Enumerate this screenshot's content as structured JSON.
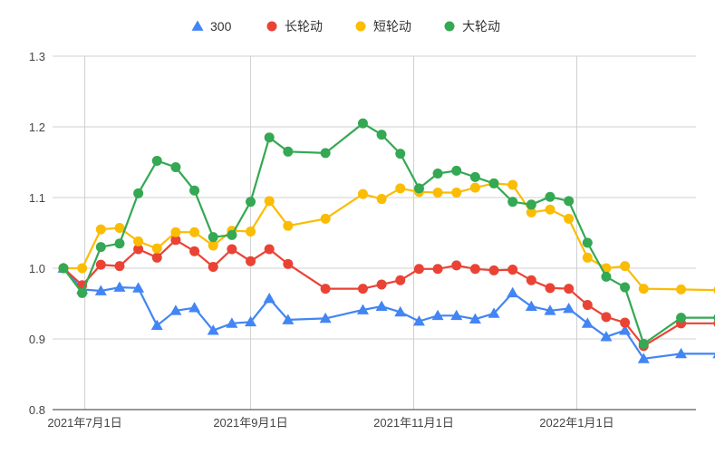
{
  "chart_data": {
    "type": "line",
    "x_start": "2021-06-28",
    "x_end": "2022-03-02",
    "x_ticks": [
      {
        "date": "2021-07-01",
        "label": "2021年7月1日"
      },
      {
        "date": "2021-09-01",
        "label": "2021年9月1日"
      },
      {
        "date": "2021-11-01",
        "label": "2021年11月1日"
      },
      {
        "date": "2022-01-01",
        "label": "2022年1月1日"
      }
    ],
    "ylim": [
      0.8,
      1.3
    ],
    "y_ticks": [
      {
        "value": 0.8,
        "label": "0.8"
      },
      {
        "value": 0.9,
        "label": "0.9"
      },
      {
        "value": 1.0,
        "label": "1.0"
      },
      {
        "value": 1.1,
        "label": "1.1"
      },
      {
        "value": 1.2,
        "label": "1.2"
      },
      {
        "value": 1.3,
        "label": "1.3"
      }
    ],
    "grid": true,
    "legend_position": "top",
    "x": [
      "2021-06-23",
      "2021-06-30",
      "2021-07-07",
      "2021-07-14",
      "2021-07-21",
      "2021-07-28",
      "2021-08-04",
      "2021-08-11",
      "2021-08-18",
      "2021-08-25",
      "2021-09-01",
      "2021-09-08",
      "2021-09-15",
      "2021-09-29",
      "2021-10-13",
      "2021-10-20",
      "2021-10-27",
      "2021-11-03",
      "2021-11-10",
      "2021-11-17",
      "2021-11-24",
      "2021-12-01",
      "2021-12-08",
      "2021-12-15",
      "2021-12-22",
      "2021-12-29",
      "2022-01-05",
      "2022-01-12",
      "2022-01-19",
      "2022-01-26",
      "2022-02-09",
      "2022-02-23"
    ],
    "series": [
      {
        "name": "300",
        "color": "#4285f4",
        "marker": "triangle",
        "values": [
          1.0,
          0.97,
          0.968,
          0.973,
          0.972,
          0.919,
          0.94,
          0.944,
          0.912,
          0.922,
          0.924,
          0.957,
          0.927,
          0.929,
          0.941,
          0.946,
          0.938,
          0.925,
          0.933,
          0.933,
          0.928,
          0.936,
          0.965,
          0.946,
          0.94,
          0.943,
          0.922,
          0.903,
          0.912,
          0.872,
          0.879,
          0.879
        ]
      },
      {
        "name": "长轮动",
        "color": "#ea4335",
        "marker": "circle",
        "values": [
          1.0,
          0.976,
          1.005,
          1.003,
          1.027,
          1.015,
          1.04,
          1.024,
          1.002,
          1.027,
          1.01,
          1.027,
          1.006,
          0.971,
          0.971,
          0.977,
          0.983,
          0.999,
          0.999,
          1.004,
          0.999,
          0.997,
          0.998,
          0.983,
          0.972,
          0.971,
          0.948,
          0.931,
          0.923,
          0.89,
          0.922,
          0.922
        ]
      },
      {
        "name": "短轮动",
        "color": "#fbbc04",
        "marker": "circle",
        "values": [
          1.0,
          1.0,
          1.055,
          1.057,
          1.038,
          1.028,
          1.051,
          1.051,
          1.032,
          1.053,
          1.052,
          1.095,
          1.06,
          1.07,
          1.105,
          1.098,
          1.113,
          1.108,
          1.107,
          1.107,
          1.114,
          1.12,
          1.118,
          1.079,
          1.083,
          1.07,
          1.015,
          1.0,
          1.003,
          0.971,
          0.97,
          0.969
        ]
      },
      {
        "name": "大轮动",
        "color": "#34a853",
        "marker": "circle",
        "values": [
          1.0,
          0.965,
          1.03,
          1.035,
          1.106,
          1.152,
          1.143,
          1.11,
          1.044,
          1.047,
          1.094,
          1.185,
          1.165,
          1.163,
          1.205,
          1.189,
          1.162,
          1.113,
          1.134,
          1.138,
          1.129,
          1.12,
          1.094,
          1.09,
          1.101,
          1.095,
          1.036,
          0.988,
          0.973,
          0.893,
          0.93,
          0.93
        ]
      }
    ]
  }
}
